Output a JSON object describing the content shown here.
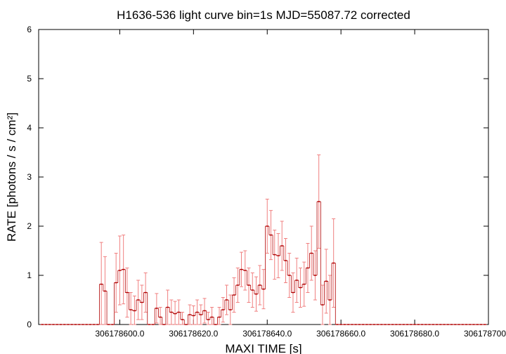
{
  "chart_data": {
    "type": "histep",
    "title": "H1636-536 light curve bin=1s MJD=55087.72 corrected",
    "x_label": "MAXI TIME [s]",
    "y_label": "RATE [photons / s / cm²]",
    "x": [
      306178579,
      306178580,
      306178581,
      306178582,
      306178583,
      306178584,
      306178585,
      306178586,
      306178587,
      306178588,
      306178589,
      306178590,
      306178591,
      306178592,
      306178593,
      306178594,
      306178595,
      306178596,
      306178597,
      306178598,
      306178599,
      306178600,
      306178601,
      306178602,
      306178603,
      306178604,
      306178605,
      306178606,
      306178607,
      306178608,
      306178609,
      306178610,
      306178611,
      306178612,
      306178613,
      306178614,
      306178615,
      306178616,
      306178617,
      306178618,
      306178619,
      306178620,
      306178621,
      306178622,
      306178623,
      306178624,
      306178625,
      306178626,
      306178627,
      306178628,
      306178629,
      306178630,
      306178631,
      306178632,
      306178633,
      306178634,
      306178635,
      306178636,
      306178637,
      306178638,
      306178639,
      306178640,
      306178641,
      306178642,
      306178643,
      306178644,
      306178645,
      306178646,
      306178647,
      306178648,
      306178649,
      306178650,
      306178651,
      306178652,
      306178653,
      306178654,
      306178655,
      306178656,
      306178657,
      306178658,
      306178659,
      306178660,
      306178661,
      306178662,
      306178663,
      306178664,
      306178665,
      306178666,
      306178667,
      306178668,
      306178669,
      306178670,
      306178671,
      306178672,
      306178673,
      306178674,
      306178675,
      306178676,
      306178677,
      306178678,
      306178679,
      306178680,
      306178681,
      306178682,
      306178683,
      306178684,
      306178685,
      306178686,
      306178687,
      306178688,
      306178689,
      306178690,
      306178691,
      306178692,
      306178693,
      306178694,
      306178695,
      306178696,
      306178697,
      306178698,
      306178699
    ],
    "values": [
      0,
      0,
      0,
      0,
      0,
      0,
      0,
      0,
      0,
      0,
      0,
      0,
      0,
      0,
      0,
      0,
      0.82,
      0.68,
      0,
      0,
      0.85,
      1.1,
      1.12,
      0.65,
      0.3,
      0.28,
      0.5,
      0.45,
      0.65,
      0,
      0,
      0.33,
      0.15,
      0,
      0.35,
      0.25,
      0.22,
      0.25,
      0.1,
      0,
      0.2,
      0.18,
      0.25,
      0.2,
      0.28,
      0.1,
      0.15,
      0,
      0.15,
      0.3,
      0.5,
      0.3,
      0.6,
      0.8,
      1.12,
      1.1,
      0.8,
      0.7,
      0.62,
      0.8,
      0.72,
      2.0,
      1.82,
      1.42,
      1.4,
      1.6,
      1.3,
      1.0,
      0.65,
      0.9,
      0.75,
      0.82,
      1.15,
      1.45,
      1.0,
      2.5,
      0.4,
      0.88,
      0.5,
      1.25,
      0,
      0,
      0,
      0,
      0,
      0,
      0,
      0,
      0,
      0,
      0,
      0,
      0,
      0,
      0,
      0,
      0,
      0,
      0,
      0,
      0,
      0,
      0,
      0,
      0,
      0,
      0,
      0,
      0,
      0,
      0,
      0,
      0,
      0,
      0,
      0,
      0,
      0,
      0,
      0,
      0
    ],
    "errors": [
      0,
      0,
      0,
      0,
      0,
      0,
      0,
      0,
      0,
      0,
      0,
      0,
      0,
      0,
      0,
      0,
      0.85,
      0.7,
      0,
      0,
      0.6,
      0.7,
      0.7,
      0.5,
      0.35,
      0.3,
      0.4,
      0.35,
      0.4,
      0,
      0,
      0.3,
      0.2,
      0,
      0.35,
      0.25,
      0.25,
      0.25,
      0.15,
      0,
      0.2,
      0.2,
      0.25,
      0.2,
      0.25,
      0.15,
      0.2,
      0,
      0.2,
      0.25,
      0.3,
      0.3,
      0.35,
      0.35,
      0.35,
      0.4,
      0.35,
      0.35,
      0.35,
      0.4,
      0.4,
      0.55,
      0.5,
      0.5,
      0.45,
      0.5,
      0.45,
      0.45,
      0.4,
      0.45,
      0.4,
      0.45,
      0.5,
      0.55,
      0.5,
      0.95,
      0.4,
      0.65,
      0.5,
      0.9,
      0,
      0,
      0,
      0,
      0,
      0,
      0,
      0,
      0,
      0,
      0,
      0,
      0,
      0,
      0,
      0,
      0,
      0,
      0,
      0,
      0,
      0,
      0,
      0,
      0,
      0,
      0,
      0,
      0,
      0,
      0,
      0,
      0,
      0,
      0,
      0,
      0,
      0,
      0,
      0,
      0
    ],
    "color": "#b00000",
    "error_color": "#f08080",
    "xlim": [
      306178578,
      306178700
    ],
    "ylim": [
      0,
      6
    ],
    "xticks": [
      {
        "value": 306178600,
        "label": "306178600.0"
      },
      {
        "value": 306178620,
        "label": "306178620.0"
      },
      {
        "value": 306178640,
        "label": "306178640.0"
      },
      {
        "value": 306178660,
        "label": "306178660.0"
      },
      {
        "value": 306178680,
        "label": "306178680.0"
      },
      {
        "value": 306178700,
        "label": "306178700.0"
      }
    ],
    "yticks": [
      0,
      1,
      2,
      3,
      4,
      5,
      6
    ],
    "grid": false
  }
}
